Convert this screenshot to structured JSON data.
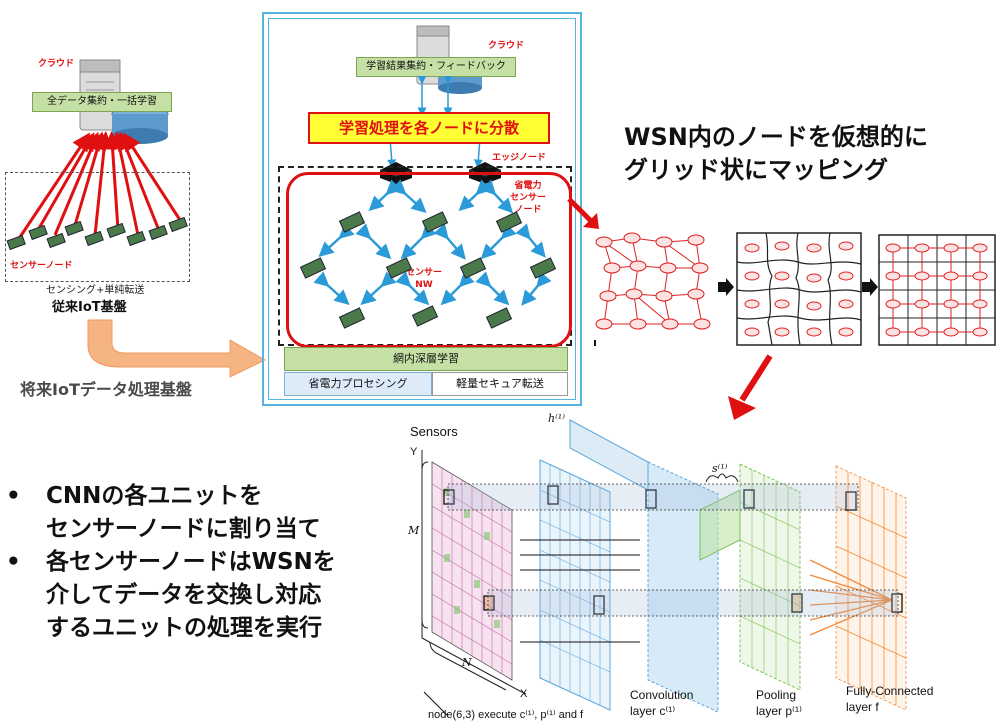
{
  "left_panel": {
    "cloud_label": "クラウド",
    "aggregate_box": "全データ集約・一括学習",
    "sensor_node_label": "センサーノード",
    "sensing_caption": "センシング+単純転送",
    "legacy_title": "従来IoT基盤"
  },
  "future_label": "将来IoTデータ処理基盤",
  "center_panel": {
    "cloud_label": "クラウド",
    "feedback_box": "学習結果集約・フィードバック",
    "distribute_banner": "学習処理を各ノードに分散",
    "edge_node_label": "エッジノード",
    "low_power_label": "省電力\nセンサー\nノード",
    "sensor_nw_label": "センサー\nNW",
    "in_network_dl": "網内深層学習",
    "low_power_processing": "省電力プロセシング",
    "secure_transfer": "軽量セキュア転送"
  },
  "mapping_title": [
    "WSN内のノードを仮想的に",
    "グリッド状にマッピング"
  ],
  "bullets": [
    [
      "CNNの各ユニットを",
      "センサーノードに割り当て"
    ],
    [
      "各センサーノードはWSNを",
      "介してデータを交換し対応",
      "するユニットの処理を実行"
    ]
  ],
  "bullet_glyph": "•",
  "cnn": {
    "sensors_label": "Sensors",
    "y_axis": "Y",
    "x_axis": "X",
    "m_label": "M",
    "n_label": "N",
    "h_label": "h⁽¹⁾",
    "s_label": "s⁽¹⁾",
    "node_caption": "node(6,3) execute c⁽¹⁾, p⁽¹⁾ and f",
    "conv_label": [
      "Convolution",
      "layer c⁽¹⁾"
    ],
    "pool_label": [
      "Pooling",
      "layer p⁽¹⁾"
    ],
    "fc_label": [
      "Fully-Connected",
      "layer f"
    ]
  },
  "colors": {
    "frame_blue": "#56b4e0",
    "red": "#e01010",
    "yellow": "#ffff33",
    "green_box": "#c4e0a4",
    "arrow_blue": "#2a9ad8",
    "orange_arrow": "#f7b483",
    "conv_blue": "#5aa6dd",
    "pool_green": "#77c455",
    "fc_orange": "#f08a3a"
  }
}
